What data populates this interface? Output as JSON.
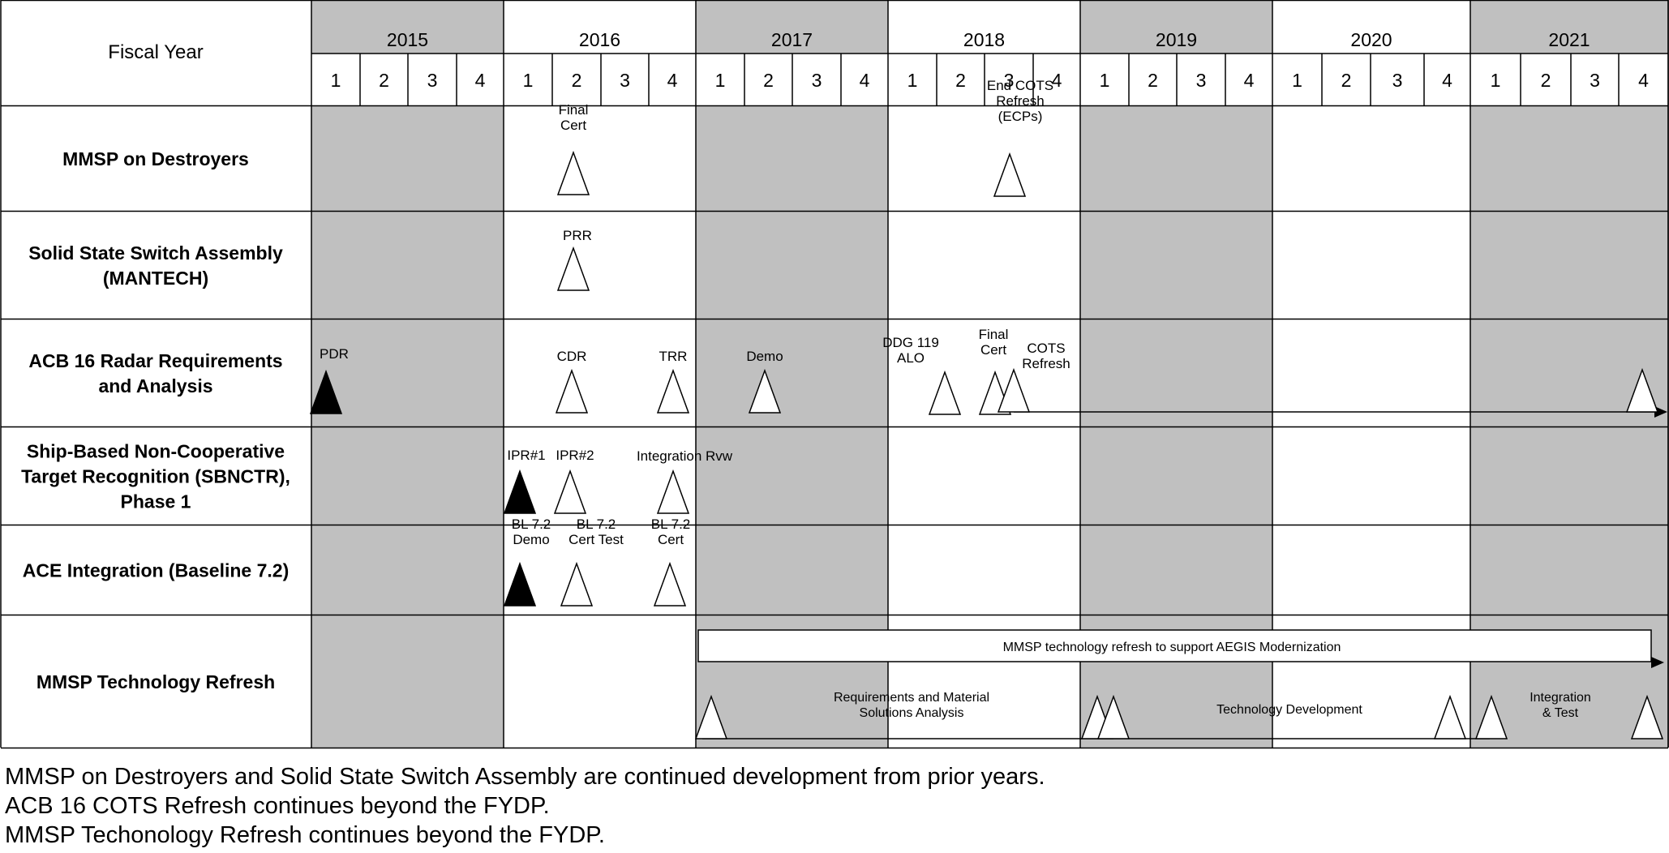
{
  "header": {
    "fiscal_year_label": "Fiscal Year",
    "years": [
      "2015",
      "2016",
      "2017",
      "2018",
      "2019",
      "2020",
      "2021"
    ],
    "quarters": [
      "1",
      "2",
      "3",
      "4"
    ]
  },
  "colors": {
    "shade": "#c0c0c0",
    "line": "#000000",
    "background": "#ffffff"
  },
  "rows": [
    {
      "label": [
        "MMSP on Destroyers"
      ],
      "milestones": [
        {
          "label": [
            "Final",
            "Cert"
          ],
          "filled": false
        },
        {
          "label": [
            "End COTS",
            "Refresh",
            "(ECPs)"
          ],
          "filled": false
        }
      ]
    },
    {
      "label": [
        "Solid State Switch Assembly",
        "(MANTECH)"
      ],
      "milestones": [
        {
          "label": [
            "PRR"
          ],
          "filled": false
        }
      ]
    },
    {
      "label": [
        "ACB 16 Radar Requirements",
        "and Analysis"
      ],
      "milestones": [
        {
          "label": [
            "PDR"
          ],
          "filled": true
        },
        {
          "label": [
            "CDR"
          ],
          "filled": false
        },
        {
          "label": [
            "TRR"
          ],
          "filled": false
        },
        {
          "label": [
            "Demo"
          ],
          "filled": false
        },
        {
          "label": [
            "DDG 119",
            "ALO"
          ],
          "filled": false
        },
        {
          "label": [
            "Final",
            "Cert"
          ],
          "filled": false
        },
        {
          "label": [
            "COTS",
            "Refresh"
          ],
          "filled": false
        },
        {
          "label": [],
          "filled": false
        }
      ]
    },
    {
      "label": [
        "Ship-Based Non-Cooperative",
        "Target Recognition (SBNCTR),",
        "Phase 1"
      ],
      "milestones": [
        {
          "label": [
            "IPR#1"
          ],
          "filled": true
        },
        {
          "label": [
            "IPR#2"
          ],
          "filled": false
        },
        {
          "label": [
            "Integration Rvw"
          ],
          "filled": false
        }
      ]
    },
    {
      "label": [
        "ACE Integration (Baseline 7.2)"
      ],
      "milestones": [
        {
          "label": [
            "BL 7.2",
            "Demo"
          ],
          "filled": true
        },
        {
          "label": [
            "BL 7.2",
            "Cert Test"
          ],
          "filled": false
        },
        {
          "label": [
            "BL 7.2",
            "Cert"
          ],
          "filled": false
        }
      ]
    },
    {
      "label": [
        "MMSP Technology Refresh"
      ],
      "bar_label": "MMSP  technology refresh to support AEGIS Modernization",
      "phases": [
        [
          "Requirements and Material",
          "Solutions Analysis"
        ],
        [
          "Technology  Development"
        ],
        [
          "Integration",
          "& Test"
        ]
      ],
      "milestones": [
        {
          "label": [],
          "filled": false
        },
        {
          "label": [],
          "filled": false
        },
        {
          "label": [],
          "filled": false
        },
        {
          "label": [],
          "filled": false
        },
        {
          "label": [],
          "filled": false
        },
        {
          "label": [],
          "filled": false
        }
      ]
    }
  ],
  "notes": [
    "MMSP on Destroyers and Solid State Switch Assembly are continued development from prior years.",
    "ACB 16 COTS Refresh continues beyond the FYDP.",
    "MMSP Techonology Refresh continues beyond the FYDP."
  ]
}
